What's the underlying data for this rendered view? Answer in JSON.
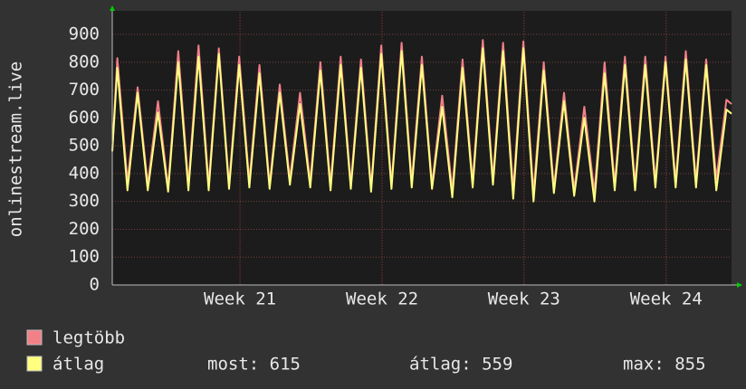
{
  "chart_data": {
    "type": "line",
    "y_label": "onlinestream.live",
    "x": [
      0,
      0.25,
      0.75,
      1.25,
      1.75,
      2.25,
      2.75,
      3.25,
      3.75,
      4.25,
      4.75,
      5.25,
      5.75,
      6.25,
      6.75,
      7.25,
      7.75,
      8.25,
      8.75,
      9.25,
      9.75,
      10.25,
      10.75,
      11.25,
      11.75,
      12.25,
      12.75,
      13.25,
      13.75,
      14.25,
      14.75,
      15.25,
      15.75,
      16.25,
      16.75,
      17.25,
      17.75,
      18.25,
      18.75,
      19.25,
      19.75,
      20.25,
      20.75,
      21.25,
      21.75,
      22.25,
      22.75,
      23.25,
      23.75,
      24.25,
      24.75,
      25.25,
      25.75,
      26.25,
      26.75,
      27.25,
      27.75,
      28.25,
      28.75,
      29.25,
      29.75,
      30.25,
      30.5
    ],
    "series": [
      {
        "name": "legtöbb",
        "color": "#f28088",
        "values": [
          480,
          815,
          370,
          710,
          360,
          660,
          350,
          840,
          360,
          860,
          360,
          850,
          360,
          820,
          370,
          790,
          360,
          720,
          380,
          690,
          370,
          800,
          360,
          820,
          360,
          810,
          350,
          860,
          360,
          870,
          370,
          820,
          360,
          680,
          340,
          810,
          370,
          880,
          380,
          870,
          340,
          875,
          330,
          800,
          350,
          690,
          340,
          640,
          330,
          800,
          360,
          820,
          360,
          820,
          370,
          820,
          370,
          840,
          370,
          810,
          380,
          665,
          650
        ]
      },
      {
        "name": "átlag",
        "color": "#ffff80",
        "values": [
          480,
          780,
          340,
          690,
          340,
          620,
          335,
          800,
          340,
          820,
          340,
          830,
          345,
          790,
          350,
          760,
          345,
          690,
          360,
          650,
          350,
          770,
          340,
          790,
          345,
          780,
          335,
          830,
          345,
          840,
          350,
          790,
          345,
          640,
          315,
          780,
          350,
          850,
          360,
          840,
          310,
          850,
          300,
          770,
          330,
          660,
          320,
          600,
          300,
          760,
          340,
          790,
          340,
          790,
          350,
          800,
          350,
          810,
          350,
          790,
          340,
          630,
          615
        ]
      }
    ],
    "xlim": [
      0,
      30.5
    ],
    "xticks": [
      {
        "value": 6.29,
        "label": "Week 21"
      },
      {
        "value": 13.29,
        "label": "Week 22"
      },
      {
        "value": 20.28,
        "label": "Week 23"
      },
      {
        "value": 27.28,
        "label": "Week 24"
      }
    ],
    "ylim": [
      0,
      980
    ],
    "yticks": [
      0,
      100,
      200,
      300,
      400,
      500,
      600,
      700,
      800,
      900
    ],
    "grid": true,
    "legend_stats": [
      "most: 615",
      "átlag: 559",
      "max: 855"
    ]
  }
}
